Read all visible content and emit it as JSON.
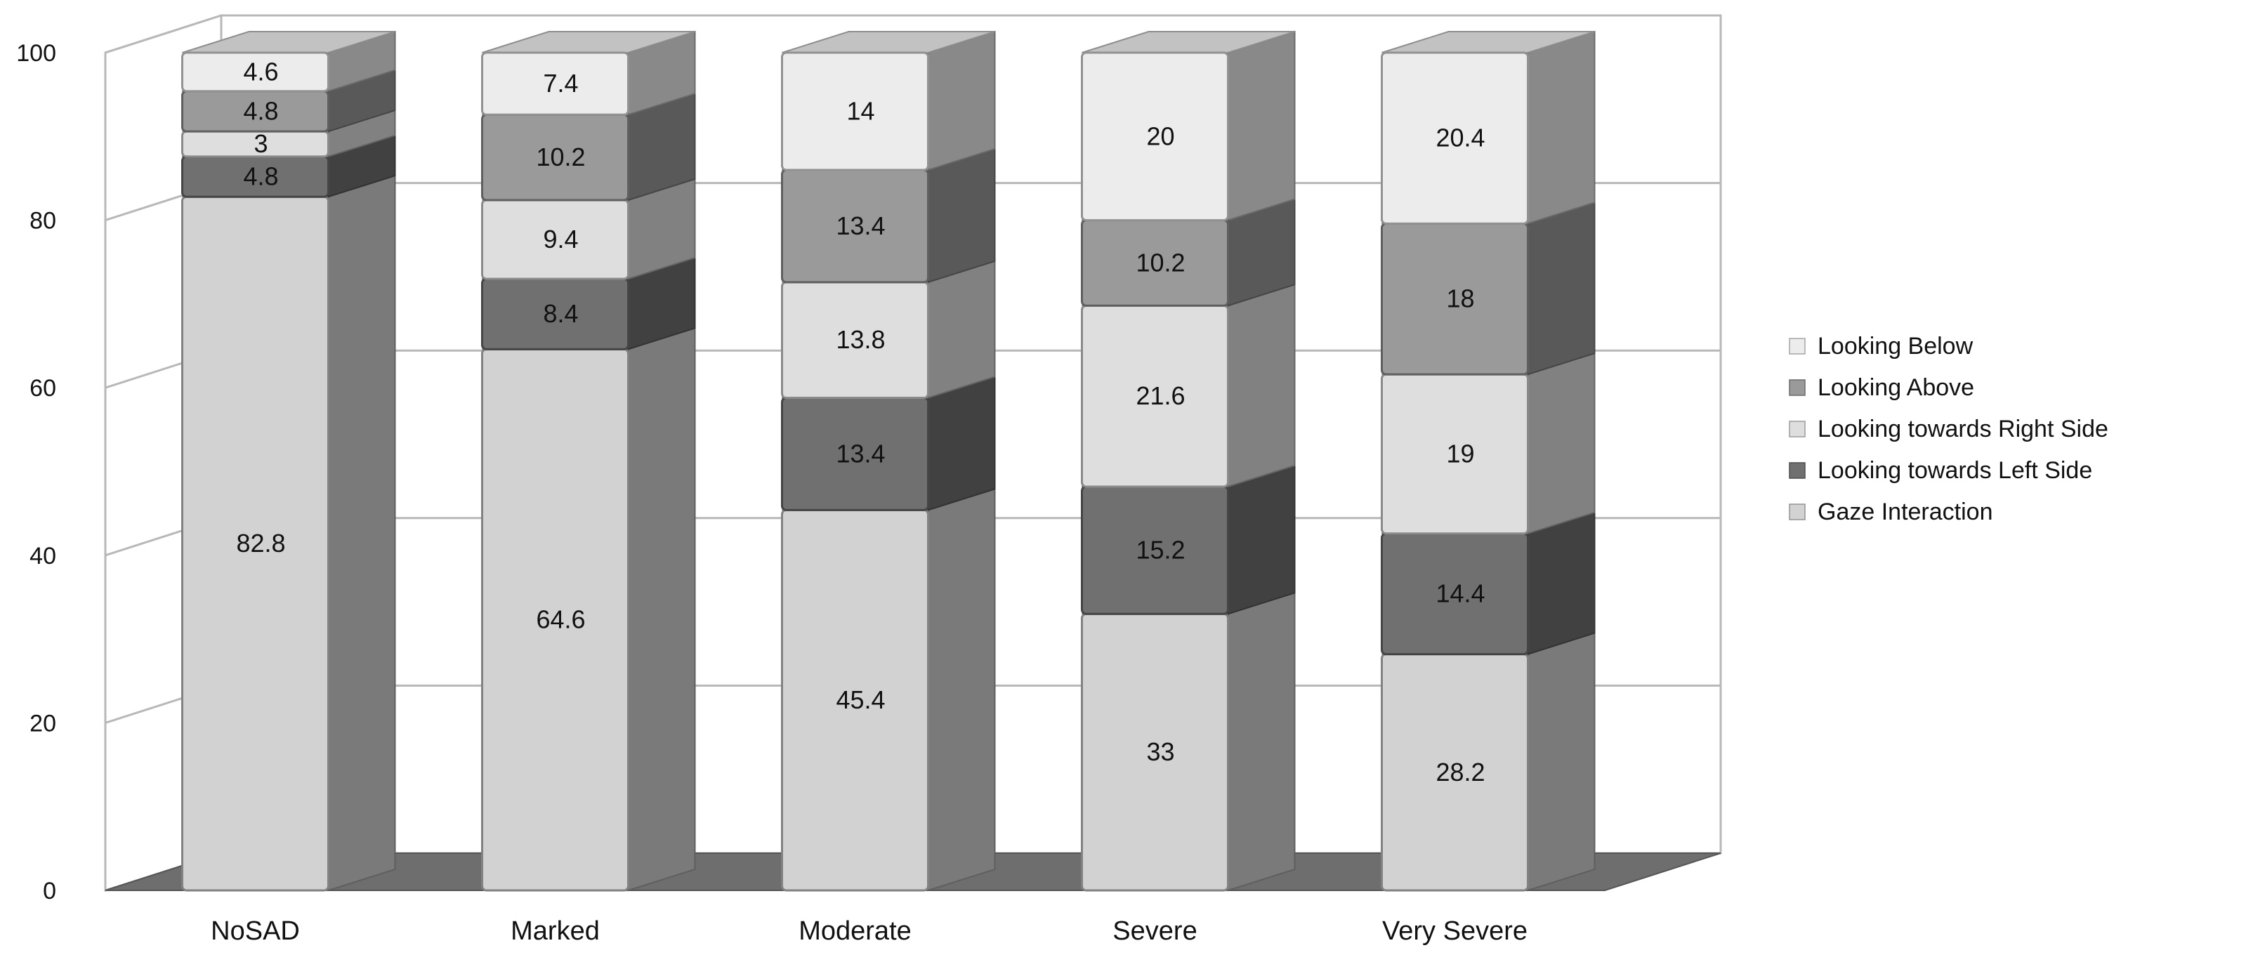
{
  "chart_data": {
    "type": "bar",
    "stacked": true,
    "three_d": true,
    "title": "",
    "xlabel": "",
    "ylabel": "",
    "ylim": [
      0,
      100
    ],
    "yticks": [
      "0",
      "20",
      "40",
      "60",
      "80",
      "100"
    ],
    "grid": true,
    "legend_position": "right",
    "categories": [
      "NoSAD",
      "Marked",
      "Moderate",
      "Severe",
      "Very Severe"
    ],
    "series": [
      {
        "name": "Gaze Interaction",
        "values": [
          82.8,
          64.6,
          45.4,
          33,
          28.2
        ],
        "labels": [
          "82.8",
          "64.6",
          "45.4",
          "33",
          "28.2"
        ],
        "color": "#d2d2d2"
      },
      {
        "name": "Looking towards Left Side",
        "values": [
          4.8,
          8.4,
          13.4,
          15.2,
          14.4
        ],
        "labels": [
          "4.8",
          "8.4",
          "13.4",
          "15.2",
          "14.4"
        ],
        "color": "#707070"
      },
      {
        "name": "Looking towards Right Side",
        "values": [
          3,
          9.4,
          13.8,
          21.6,
          19
        ],
        "labels": [
          "3",
          "9.4",
          "13.8",
          "21.6",
          "19"
        ],
        "color": "#dedede"
      },
      {
        "name": "Looking Above",
        "values": [
          4.8,
          10.2,
          13.4,
          10.2,
          18
        ],
        "labels": [
          "4.8",
          "10.2",
          "13.4",
          "10.2",
          "18"
        ],
        "color": "#9a9a9a"
      },
      {
        "name": "Looking Below",
        "values": [
          4.6,
          7.4,
          14,
          20,
          20.4
        ],
        "labels": [
          "4.6",
          "7.4",
          "14",
          "20",
          "20.4"
        ],
        "color": "#ececec"
      }
    ],
    "legend_order": [
      "Looking Below",
      "Looking Above",
      "Looking towards Right Side",
      "Looking towards Left Side",
      "Gaze Interaction"
    ]
  }
}
